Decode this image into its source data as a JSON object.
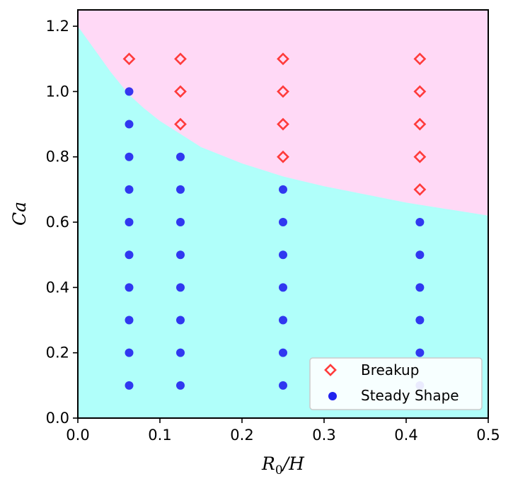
{
  "chart_data": {
    "type": "scatter",
    "xlabel_base": "R",
    "xlabel_sub": "0",
    "xlabel_tail": "/H",
    "ylabel": "Ca",
    "xlim": [
      0,
      0.5
    ],
    "ylim": [
      0,
      1.25
    ],
    "xticks": [
      "0.0",
      "0.1",
      "0.2",
      "0.3",
      "0.4",
      "0.5"
    ],
    "yticks": [
      "0.0",
      "0.2",
      "0.4",
      "0.6",
      "0.8",
      "1.0",
      "1.2"
    ],
    "grid": false,
    "legend_position": "bottom-right",
    "regions": {
      "breakup_color": "#ffd9f6",
      "steady_color": "#b0fffa",
      "boundary": {
        "x": [
          0,
          0.02,
          0.04,
          0.0625,
          0.08,
          0.1,
          0.125,
          0.15,
          0.2,
          0.25,
          0.3,
          0.35,
          0.4,
          0.45,
          0.5
        ],
        "y": [
          1.2,
          1.13,
          1.06,
          0.99,
          0.95,
          0.91,
          0.87,
          0.83,
          0.78,
          0.74,
          0.71,
          0.685,
          0.66,
          0.64,
          0.62
        ]
      }
    },
    "series": [
      {
        "name": "Breakup",
        "marker": "diamond",
        "color": "#ff3b3b",
        "points": [
          [
            0.0625,
            1.1
          ],
          [
            0.125,
            1.1
          ],
          [
            0.125,
            1.0
          ],
          [
            0.125,
            0.9
          ],
          [
            0.25,
            1.1
          ],
          [
            0.25,
            1.0
          ],
          [
            0.25,
            0.9
          ],
          [
            0.25,
            0.8
          ],
          [
            0.4167,
            1.1
          ],
          [
            0.4167,
            1.0
          ],
          [
            0.4167,
            0.9
          ],
          [
            0.4167,
            0.8
          ],
          [
            0.4167,
            0.7
          ]
        ]
      },
      {
        "name": "Steady Shape",
        "marker": "circle",
        "color": "#2222ee",
        "points": [
          [
            0.0625,
            1.0
          ],
          [
            0.0625,
            0.9
          ],
          [
            0.0625,
            0.8
          ],
          [
            0.0625,
            0.7
          ],
          [
            0.0625,
            0.6
          ],
          [
            0.0625,
            0.5
          ],
          [
            0.0625,
            0.4
          ],
          [
            0.0625,
            0.3
          ],
          [
            0.0625,
            0.2
          ],
          [
            0.0625,
            0.1
          ],
          [
            0.125,
            0.8
          ],
          [
            0.125,
            0.7
          ],
          [
            0.125,
            0.6
          ],
          [
            0.125,
            0.5
          ],
          [
            0.125,
            0.4
          ],
          [
            0.125,
            0.3
          ],
          [
            0.125,
            0.2
          ],
          [
            0.125,
            0.1
          ],
          [
            0.25,
            0.7
          ],
          [
            0.25,
            0.6
          ],
          [
            0.25,
            0.5
          ],
          [
            0.25,
            0.4
          ],
          [
            0.25,
            0.3
          ],
          [
            0.25,
            0.2
          ],
          [
            0.25,
            0.1
          ],
          [
            0.4167,
            0.6
          ],
          [
            0.4167,
            0.5
          ],
          [
            0.4167,
            0.4
          ],
          [
            0.4167,
            0.3
          ],
          [
            0.4167,
            0.2
          ],
          [
            0.4167,
            0.1
          ]
        ]
      }
    ]
  }
}
